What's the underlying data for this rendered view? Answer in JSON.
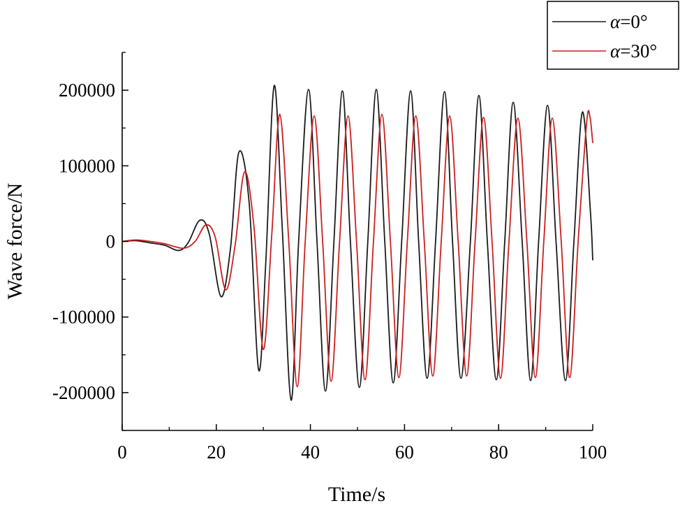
{
  "chart_data": {
    "type": "line",
    "title": "",
    "xlabel": "Time/s",
    "ylabel": "Wave force/N",
    "xlim": [
      0,
      100
    ],
    "ylim": [
      -250000,
      250000
    ],
    "x_ticks": [
      0,
      20,
      40,
      60,
      80,
      100
    ],
    "x_tick_labels": [
      "0",
      "20",
      "40",
      "60",
      "80",
      "100"
    ],
    "y_ticks": [
      -200000,
      -100000,
      0,
      100000,
      200000
    ],
    "y_tick_labels": [
      "-200000",
      "-100000",
      "0",
      "100000",
      "200000"
    ],
    "grid": false,
    "legend_position": "top-right",
    "series": [
      {
        "name": "α=0°",
        "legend_symbol": "α",
        "legend_rest": "=0°",
        "color": "#1a1a1a",
        "x": [
          0,
          3,
          6,
          9,
          12,
          14,
          16.5,
          18.5,
          21,
          23,
          24.8,
          27,
          29,
          30.5,
          32.3,
          34,
          35.9,
          37.5,
          39.6,
          41.4,
          43.2,
          45,
          46.8,
          48.5,
          50.4,
          52.2,
          54,
          55.8,
          57.6,
          59.4,
          61.3,
          63,
          64.8,
          66.6,
          68.5,
          70.2,
          72,
          74,
          75.8,
          77.6,
          79.5,
          81.3,
          83.1,
          85,
          86.8,
          88.5,
          90.4,
          92.2,
          94.2,
          96,
          97.8,
          99.5,
          100
        ],
        "y": [
          0,
          1000,
          -2000,
          -5000,
          -12000,
          -2000,
          28000,
          10000,
          -73000,
          -10000,
          118000,
          50000,
          -170000,
          -30000,
          206000,
          20000,
          -210000,
          0,
          201000,
          0,
          -198000,
          0,
          199000,
          0,
          -193000,
          0,
          201000,
          0,
          -187000,
          0,
          199000,
          0,
          -181000,
          0,
          198000,
          0,
          -181000,
          0,
          193000,
          0,
          -183000,
          0,
          184000,
          0,
          -184000,
          0,
          180000,
          0,
          -184000,
          0,
          171000,
          40000,
          -25000
        ]
      },
      {
        "name": "α=30°",
        "legend_symbol": "α",
        "legend_rest": "=30°",
        "color": "#cc1f1f",
        "x": [
          0,
          3,
          6,
          9,
          13,
          15.5,
          17.8,
          19.8,
          22,
          24,
          26,
          28,
          30,
          31.8,
          33.5,
          35.4,
          37.2,
          38.9,
          40.8,
          42.6,
          44.4,
          46.2,
          48,
          49.8,
          51.6,
          53.4,
          55.2,
          57,
          58.8,
          60.6,
          62.4,
          64.2,
          66,
          67.8,
          69.6,
          71.4,
          73.2,
          75,
          76.8,
          78.6,
          80.4,
          82.2,
          84.1,
          86,
          87.8,
          89.6,
          91.4,
          93.3,
          95.1,
          96.9,
          98.7,
          99.4,
          100
        ],
        "y": [
          0,
          2000,
          0,
          -3000,
          -9000,
          0,
          22000,
          5000,
          -64000,
          -5000,
          92000,
          20000,
          -143000,
          10000,
          168000,
          0,
          -192000,
          0,
          166000,
          0,
          -185000,
          0,
          166000,
          0,
          -183000,
          0,
          168000,
          0,
          -180000,
          0,
          166000,
          0,
          -178000,
          0,
          166000,
          0,
          -178000,
          0,
          164000,
          0,
          -181000,
          0,
          163000,
          0,
          -180000,
          0,
          163000,
          0,
          -180000,
          0,
          157000,
          165000,
          130000
        ]
      }
    ]
  }
}
